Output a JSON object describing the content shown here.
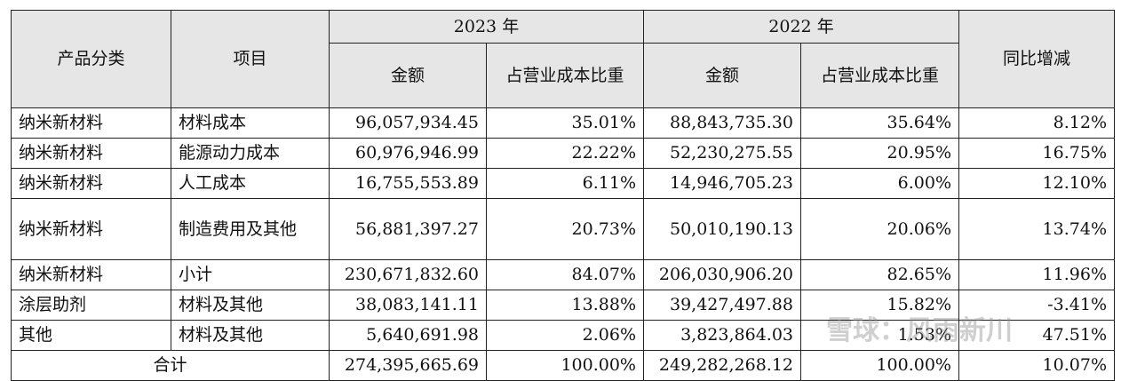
{
  "header": {
    "col_category": "产品分类",
    "col_item": "项目",
    "year_2023": "2023 年",
    "year_2022": "2022 年",
    "col_yoy": "同比增减",
    "sub_amount": "金额",
    "sub_ratio": "占营业成本比重"
  },
  "rows": [
    {
      "category": "纳米新材料",
      "item": "材料成本",
      "amt_2023": "96,057,934.45",
      "pct_2023": "35.01%",
      "amt_2022": "88,843,735.30",
      "pct_2022": "35.64%",
      "yoy": "8.12%"
    },
    {
      "category": "纳米新材料",
      "item": "能源动力成本",
      "amt_2023": "60,976,946.99",
      "pct_2023": "22.22%",
      "amt_2022": "52,230,275.55",
      "pct_2022": "20.95%",
      "yoy": "16.75%"
    },
    {
      "category": "纳米新材料",
      "item": "人工成本",
      "amt_2023": "16,755,553.89",
      "pct_2023": "6.11%",
      "amt_2022": "14,946,705.23",
      "pct_2022": "6.00%",
      "yoy": "12.10%"
    },
    {
      "category": "纳米新材料",
      "item": "制造费用及其他",
      "amt_2023": "56,881,397.27",
      "pct_2023": "20.73%",
      "amt_2022": "50,010,190.13",
      "pct_2022": "20.06%",
      "yoy": "13.74%"
    },
    {
      "category": "纳米新材料",
      "item": "小计",
      "amt_2023": "230,671,832.60",
      "pct_2023": "84.07%",
      "amt_2022": "206,030,906.20",
      "pct_2022": "82.65%",
      "yoy": "11.96%"
    },
    {
      "category": "涂层助剂",
      "item": "材料及其他",
      "amt_2023": "38,083,141.11",
      "pct_2023": "13.88%",
      "amt_2022": "39,427,497.88",
      "pct_2022": "15.82%",
      "yoy": "-3.41%"
    },
    {
      "category": "其他",
      "item": "材料及其他",
      "amt_2023": "5,640,691.98",
      "pct_2023": "2.06%",
      "amt_2022": "3,823,864.03",
      "pct_2022": "1.53%",
      "yoy": "47.51%"
    }
  ],
  "total": {
    "label": "合计",
    "amt_2023": "274,395,665.69",
    "pct_2023": "100.00%",
    "amt_2022": "249,282,268.12",
    "pct_2022": "100.00%",
    "yoy": "10.07%"
  },
  "watermark": "雪球：风雨新川"
}
